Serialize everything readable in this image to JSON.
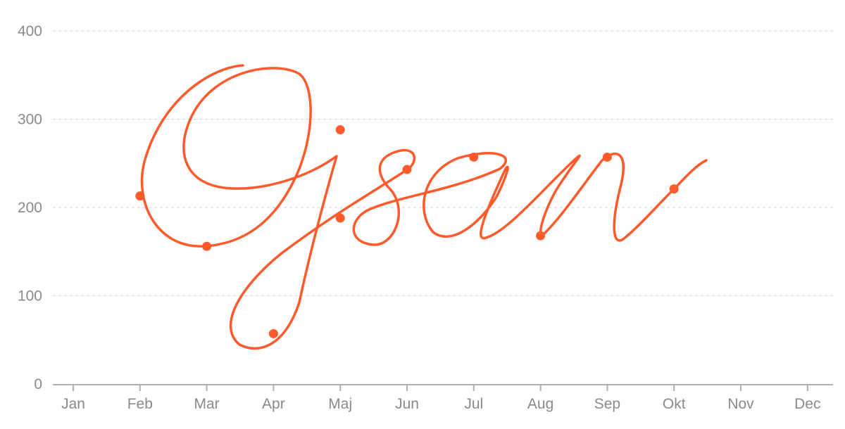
{
  "chart_data": {
    "type": "scatter",
    "title": "",
    "xlabel": "",
    "ylabel": "",
    "categories": [
      "Jan",
      "Feb",
      "Mar",
      "Apr",
      "Maj",
      "Jun",
      "Jul",
      "Aug",
      "Sep",
      "Okt",
      "Nov",
      "Dec"
    ],
    "y_ticks": [
      "0",
      "100",
      "200",
      "300",
      "400"
    ],
    "ylim": [
      0,
      400
    ],
    "grid": "horizontal dashed",
    "legend": "none",
    "series": [
      {
        "points": [
          {
            "x": "Feb",
            "y": 213
          },
          {
            "x": "Mar",
            "y": 156
          },
          {
            "x": "Apr",
            "y": 57
          },
          {
            "x": "Maj",
            "y": 288
          },
          {
            "x": "Maj",
            "y": 188
          },
          {
            "x": "Jun",
            "y": 243
          },
          {
            "x": "Jul",
            "y": 257
          },
          {
            "x": "Aug",
            "y": 168
          },
          {
            "x": "Sep",
            "y": 257
          },
          {
            "x": "Okt",
            "y": 221
          }
        ]
      }
    ],
    "signature_lettering": "Ojsan",
    "color": "#ff5a2c"
  }
}
